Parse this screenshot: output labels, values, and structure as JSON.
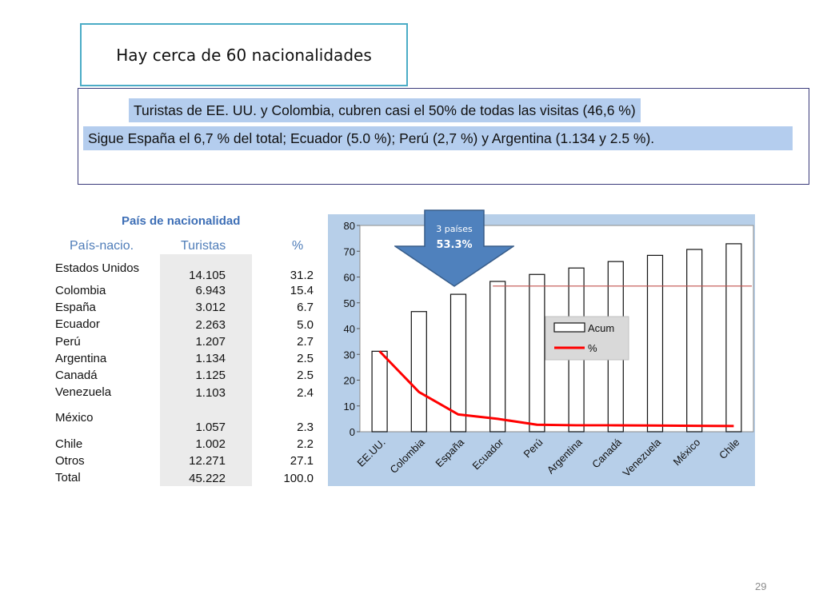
{
  "slide": {
    "title": "Hay cerca de 60 nacionalidades",
    "summary_line1": "Turistas de EE. UU. y Colombia, cubren casi el 50% de todas las visitas (46,6 %)",
    "summary_line2": "Sigue España el 6,7 % del total; Ecuador (5.0 %); Perú (2,7 %) y Argentina (1.134 y 2.5 %).",
    "page_number": "29"
  },
  "table": {
    "title": "País de nacionalidad",
    "headers": [
      "País-nacio.",
      "Turistas",
      "%"
    ],
    "rows": [
      {
        "country": "Estados Unidos",
        "tourists": "14.105",
        "pct": "31.2"
      },
      {
        "country": "Colombia",
        "tourists": "6.943",
        "pct": "15.4"
      },
      {
        "country": "España",
        "tourists": "3.012",
        "pct": "6.7"
      },
      {
        "country": "Ecuador",
        "tourists": "2.263",
        "pct": "5.0"
      },
      {
        "country": "Perú",
        "tourists": "1.207",
        "pct": "2.7"
      },
      {
        "country": "Argentina",
        "tourists": "1.134",
        "pct": "2.5"
      },
      {
        "country": "Canadá",
        "tourists": "1.125",
        "pct": "2.5"
      },
      {
        "country": "Venezuela",
        "tourists": "1.103",
        "pct": "2.4"
      },
      {
        "country": "México",
        "tourists": "1.057",
        "pct": "2.3"
      },
      {
        "country": "Chile",
        "tourists": "1.002",
        "pct": "2.2"
      },
      {
        "country": "Otros",
        "tourists": "12.271",
        "pct": "27.1"
      },
      {
        "country": "Total",
        "tourists": "45.222",
        "pct": "100.0"
      }
    ]
  },
  "callout": {
    "line1": "3 países",
    "line2": "53.3%",
    "color": "#4f81bd"
  },
  "chart_data": {
    "type": "bar",
    "categories": [
      "EE.UU.",
      "Colombia",
      "España",
      "Ecuador",
      "Perú",
      "Argentina",
      "Canadá",
      "Venezuela",
      "México",
      "Chile"
    ],
    "series": [
      {
        "name": "Acum",
        "type": "bar",
        "values": [
          31.2,
          46.6,
          53.3,
          58.3,
          61.0,
          63.5,
          66.0,
          68.4,
          70.7,
          72.9
        ],
        "color": "#ffffff"
      },
      {
        "name": "%",
        "type": "line",
        "values": [
          31.2,
          15.4,
          6.7,
          5.0,
          2.7,
          2.5,
          2.5,
          2.4,
          2.3,
          2.2
        ],
        "color": "#ff0000"
      }
    ],
    "reference_line": {
      "value": 56.5,
      "from_category": "Ecuador",
      "color": "#c0504d"
    },
    "ylim": [
      0,
      80
    ],
    "yticks": [
      "0",
      "10",
      "20",
      "30",
      "40",
      "50",
      "60",
      "70",
      "80"
    ],
    "grid": false,
    "legend_position": "center-right",
    "title": "",
    "xlabel": "",
    "ylabel": ""
  }
}
